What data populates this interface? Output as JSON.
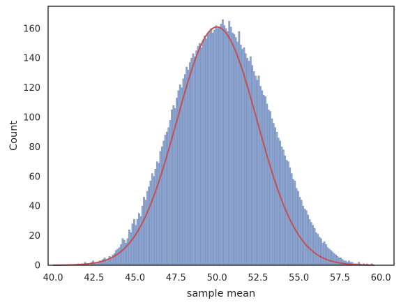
{
  "chart_data": {
    "type": "bar",
    "subtype": "histogram_with_fitted_normal_curve",
    "title": "",
    "xlabel": "sample mean",
    "ylabel": "Count",
    "xlim": [
      39.7,
      60.8
    ],
    "ylim": [
      0,
      175
    ],
    "x_ticks": [
      "40.0",
      "42.5",
      "45.0",
      "47.5",
      "50.0",
      "52.5",
      "55.0",
      "57.5",
      "60.0"
    ],
    "y_ticks": [
      "0",
      "20",
      "40",
      "60",
      "80",
      "100",
      "120",
      "140",
      "160"
    ],
    "grid": false,
    "legend": "none",
    "bin_width": 0.1,
    "bins_start": 41.5,
    "counts": [
      1,
      0,
      1,
      0,
      2,
      0,
      1,
      0,
      2,
      3,
      1,
      1,
      2,
      3,
      2,
      4,
      5,
      3,
      4,
      6,
      5,
      7,
      8,
      10,
      11,
      12,
      14,
      18,
      17,
      15,
      18,
      24,
      22,
      28,
      31,
      27,
      31,
      35,
      33,
      40,
      46,
      44,
      50,
      53,
      57,
      62,
      60,
      65,
      70,
      69,
      77,
      80,
      84,
      88,
      90,
      93,
      98,
      105,
      108,
      106,
      113,
      118,
      122,
      120,
      126,
      129,
      134,
      132,
      137,
      140,
      143,
      141,
      145,
      148,
      150,
      147,
      152,
      155,
      153,
      156,
      158,
      160,
      157,
      159,
      162,
      160,
      161,
      163,
      166,
      162,
      160,
      158,
      165,
      161,
      157,
      156,
      154,
      151,
      158,
      149,
      146,
      147,
      143,
      140,
      138,
      141,
      135,
      131,
      128,
      125,
      128,
      121,
      118,
      115,
      114,
      109,
      105,
      104,
      99,
      96,
      93,
      90,
      86,
      84,
      80,
      78,
      74,
      71,
      70,
      66,
      62,
      58,
      57,
      52,
      50,
      46,
      44,
      40,
      38,
      37,
      34,
      31,
      29,
      27,
      25,
      22,
      21,
      19,
      18,
      15,
      16,
      14,
      12,
      11,
      10,
      9,
      8,
      7,
      6,
      5,
      5,
      4,
      3,
      3,
      2,
      3,
      2,
      2,
      1,
      1,
      1,
      2,
      1,
      0,
      1,
      0,
      1,
      0,
      0,
      1
    ],
    "fit_curve": {
      "type": "normal_pdf_scaled",
      "mean": 50.0,
      "std": 2.45,
      "peak_count": 161,
      "x_range": [
        40.0,
        59.6
      ]
    },
    "colors": {
      "bar_fill": "#8ea5cf",
      "bar_edge": "#6f87b6",
      "curve": "#c44e52",
      "axis_frame": "#262626"
    }
  }
}
